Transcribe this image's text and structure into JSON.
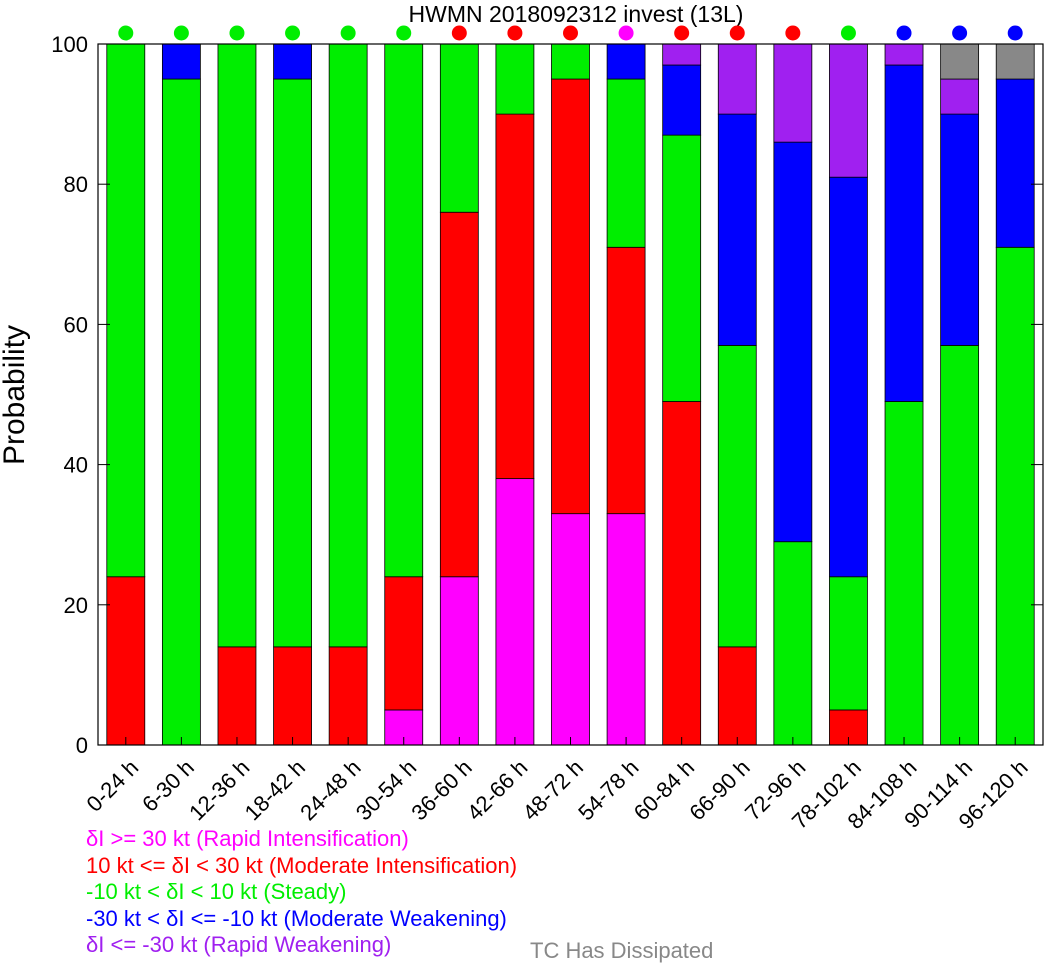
{
  "chart_data": {
    "type": "bar",
    "stacked": true,
    "title": "HWMN 2018092312 invest (13L)",
    "ylabel": "Probability",
    "xlabel": "",
    "ylim": [
      0,
      100
    ],
    "yticks": [
      0,
      20,
      40,
      60,
      80,
      100
    ],
    "categories": [
      "0-24 h",
      "6-30 h",
      "12-36 h",
      "18-42 h",
      "24-48 h",
      "30-54 h",
      "36-60 h",
      "42-66 h",
      "48-72 h",
      "54-78 h",
      "60-84 h",
      "66-90 h",
      "72-96 h",
      "78-102 h",
      "84-108 h",
      "90-114 h",
      "96-120 h"
    ],
    "series": [
      {
        "key": "ri",
        "color": "#ff00ff",
        "values": [
          0,
          0,
          0,
          0,
          0,
          5,
          24,
          38,
          33,
          33,
          0,
          0,
          0,
          0,
          0,
          0,
          0
        ]
      },
      {
        "key": "mi",
        "color": "#ff0000",
        "values": [
          24,
          0,
          14,
          14,
          14,
          19,
          52,
          52,
          62,
          38,
          49,
          14,
          0,
          5,
          0,
          0,
          0
        ]
      },
      {
        "key": "steady",
        "color": "#00ee00",
        "values": [
          76,
          95,
          86,
          81,
          86,
          76,
          24,
          10,
          5,
          24,
          38,
          43,
          29,
          19,
          49,
          57,
          71
        ]
      },
      {
        "key": "mw",
        "color": "#0000ff",
        "values": [
          0,
          5,
          0,
          5,
          0,
          0,
          0,
          0,
          0,
          5,
          10,
          33,
          57,
          57,
          48,
          33,
          24
        ]
      },
      {
        "key": "rw",
        "color": "#a020f0",
        "values": [
          0,
          0,
          0,
          0,
          0,
          0,
          0,
          0,
          0,
          0,
          3,
          10,
          14,
          19,
          3,
          5,
          0
        ]
      },
      {
        "key": "dissipated",
        "color": "#888888",
        "values": [
          0,
          0,
          0,
          0,
          0,
          0,
          0,
          0,
          0,
          0,
          0,
          0,
          0,
          0,
          0,
          5,
          5
        ]
      }
    ],
    "top_markers": [
      "#00ee00",
      "#00ee00",
      "#00ee00",
      "#00ee00",
      "#00ee00",
      "#00ee00",
      "#ff0000",
      "#ff0000",
      "#ff0000",
      "#ff00ff",
      "#ff0000",
      "#ff0000",
      "#ff0000",
      "#00ee00",
      "#0000ff",
      "#0000ff",
      "#0000ff"
    ]
  },
  "legend": {
    "ri": "δI >= 30 kt (Rapid Intensification)",
    "mi": "10 kt <= δI < 30 kt (Moderate Intensification)",
    "steady": "-10 kt < δI < 10 kt (Steady)",
    "mw": "-30 kt < δI <= -10 kt (Moderate Weakening)",
    "rw": "δI <= -30 kt (Rapid Weakening)",
    "dissipated": "TC Has Dissipated"
  },
  "colors": {
    "ri": "#ff00ff",
    "mi": "#ff0000",
    "steady": "#00ee00",
    "mw": "#0000ff",
    "rw": "#a020f0",
    "dissipated": "#888888"
  }
}
